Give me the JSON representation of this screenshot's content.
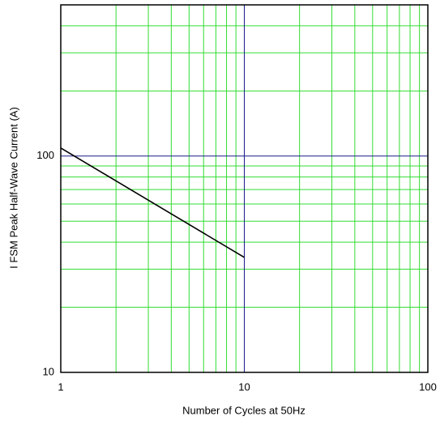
{
  "chart_data": {
    "type": "line",
    "x_label": "Number of Cycles at 50Hz",
    "y_label": "I FSM   Peak Half-Wave Current   (A)",
    "x": [
      1,
      10
    ],
    "series": [
      {
        "color": "#000000",
        "values": [
          109,
          34
        ]
      }
    ],
    "log_x": true,
    "log_y": true,
    "xlim": [
      1,
      100
    ],
    "ylim": [
      10,
      500
    ],
    "xticks": [
      1,
      10,
      100
    ],
    "yticks": [
      10,
      100
    ],
    "x_minor_ticks": [
      2,
      3,
      4,
      5,
      6,
      7,
      8,
      9,
      20,
      30,
      40,
      50,
      60,
      70,
      80,
      90
    ],
    "y_minor_ticks": [
      20,
      30,
      40,
      50,
      60,
      70,
      80,
      90,
      200,
      300,
      400
    ],
    "grid": true,
    "grid_color": "#33dd33",
    "major_grid_color": "#1a1a8c"
  }
}
